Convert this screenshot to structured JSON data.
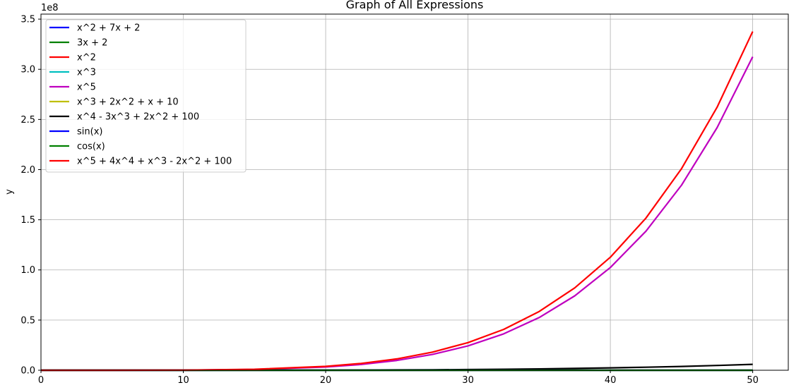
{
  "chart_data": {
    "type": "line",
    "title": "Graph of All Expressions",
    "xlabel": "",
    "ylabel": "y",
    "y_multiplier_label": "1e8",
    "xlim": [
      0,
      52.5
    ],
    "ylim": [
      0,
      3.55
    ],
    "xticks": [
      0,
      10,
      20,
      30,
      40,
      50
    ],
    "xtick_labels": [
      "0",
      "10",
      "20",
      "30",
      "40",
      "50"
    ],
    "yticks": [
      0,
      0.5,
      1.0,
      1.5,
      2.0,
      2.5,
      3.0,
      3.5
    ],
    "ytick_labels": [
      "0.0",
      "0.5",
      "1.0",
      "1.5",
      "2.0",
      "2.5",
      "3.0",
      "3.5"
    ],
    "grid": true,
    "legend_position": "upper-left",
    "x": [
      0,
      5,
      10,
      15,
      20,
      22.5,
      25,
      27.5,
      30,
      32.5,
      35,
      37.5,
      40,
      42.5,
      45,
      47.5,
      50
    ],
    "series": [
      {
        "name": "x^2 + 7x + 2",
        "color": "#0000ff",
        "values": [
          0,
          0,
          0,
          0,
          0,
          0,
          0,
          0,
          0,
          0,
          0,
          0,
          0,
          0,
          0,
          0,
          0
        ]
      },
      {
        "name": "3x + 2",
        "color": "#008000",
        "values": [
          0,
          0,
          0,
          0,
          0,
          0,
          0,
          0,
          0,
          0,
          0,
          0,
          0,
          0,
          0,
          0,
          0
        ]
      },
      {
        "name": "x^2",
        "color": "#ff0000",
        "values": [
          0,
          0,
          0,
          0,
          0,
          0,
          0,
          0,
          0,
          0,
          0,
          0,
          0,
          0,
          0,
          0,
          0
        ]
      },
      {
        "name": "x^3",
        "color": "#00bfbf",
        "values": [
          0,
          0,
          0,
          0,
          0,
          0,
          0,
          0,
          0,
          0,
          0,
          0,
          0,
          0,
          0,
          0,
          0
        ]
      },
      {
        "name": "x^5",
        "color": "#bf00bf",
        "values": [
          0,
          3e-05,
          0.001,
          0.0076,
          0.032,
          0.0577,
          0.0977,
          0.1573,
          0.243,
          0.3625,
          0.5252,
          0.7416,
          1.024,
          1.3866,
          1.8453,
          2.4179,
          3.125
        ]
      },
      {
        "name": "x^3 + 2x^2 + x + 10",
        "color": "#bfbf00",
        "values": [
          0,
          0,
          0,
          0,
          0,
          0,
          0,
          0,
          0,
          0,
          0,
          0,
          0,
          0,
          0,
          0,
          0
        ]
      },
      {
        "name": "x^4 - 3x^3 + 2x^2 + 100",
        "color": "#000000",
        "values": [
          0,
          0,
          7e-05,
          0.0004,
          0.0014,
          0.0023,
          0.0034,
          0.0051,
          0.0073,
          0.0101,
          0.0137,
          0.0182,
          0.0237,
          0.0305,
          0.0383,
          0.0477,
          0.0588
        ]
      },
      {
        "name": "sin(x)",
        "color": "#0000ff",
        "values": [
          0,
          0,
          0,
          0,
          0,
          0,
          0,
          0,
          0,
          0,
          0,
          0,
          0,
          0,
          0,
          0,
          0
        ]
      },
      {
        "name": "cos(x)",
        "color": "#008000",
        "values": [
          0,
          0,
          0,
          0,
          0,
          0,
          0,
          0,
          0,
          0,
          0,
          0,
          0,
          0,
          0,
          0,
          0
        ]
      },
      {
        "name": "x^5 + 4x^4 + x^3 - 2x^2 + 100",
        "color": "#ff0000",
        "values": [
          0,
          6e-05,
          0.0014,
          0.0097,
          0.0384,
          0.0679,
          0.1135,
          0.1804,
          0.2757,
          0.4072,
          0.5853,
          0.8211,
          1.1268,
          1.5171,
          2.0095,
          2.6216,
          3.3762
        ]
      }
    ]
  }
}
